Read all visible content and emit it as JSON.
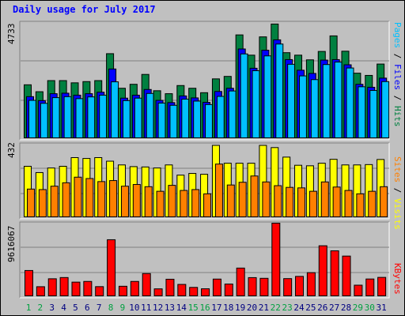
{
  "title": "Daily usage for July 2017",
  "panels": {
    "top": {
      "max_label": "4733",
      "legend": [
        {
          "text": "Pages",
          "color": "#00c0ff"
        },
        {
          "text": "Files",
          "color": "#0000ff"
        },
        {
          "text": "Hits",
          "color": "#008040"
        }
      ],
      "sep": " / "
    },
    "middle": {
      "max_label": "432",
      "legend": [
        {
          "text": "Sites",
          "color": "#ff8000"
        },
        {
          "text": "Visits",
          "color": "#ffff00"
        }
      ],
      "sep": " / "
    },
    "bottom": {
      "max_label": "9616067",
      "legend": [
        {
          "text": "KBytes",
          "color": "#ff0000"
        }
      ]
    }
  },
  "colors": {
    "background": "#c0c0c0",
    "hits": "#008040",
    "files": "#0000ff",
    "pages": "#00c0ff",
    "visits": "#ffff00",
    "sites": "#ff8000",
    "kbytes": "#ff0000",
    "weekday_label": "#000080",
    "weekend_label": "#00a040"
  },
  "chart_data": {
    "type": "bar",
    "title": "Daily usage for July 2017",
    "days": [
      "1",
      "2",
      "3",
      "4",
      "5",
      "6",
      "7",
      "8",
      "9",
      "10",
      "11",
      "12",
      "13",
      "14",
      "15",
      "16",
      "17",
      "18",
      "19",
      "20",
      "21",
      "22",
      "23",
      "24",
      "25",
      "26",
      "27",
      "28",
      "29",
      "30",
      "31"
    ],
    "weekend_days": [
      "1",
      "2",
      "8",
      "9",
      "15",
      "16",
      "22",
      "23",
      "29",
      "30"
    ],
    "series_top": {
      "ymax": 4733,
      "hits": [
        2180,
        1900,
        2350,
        2350,
        2260,
        2310,
        2350,
        3440,
        2040,
        2200,
        2600,
        1940,
        1820,
        2150,
        2040,
        1860,
        2420,
        2520,
        4200,
        3380,
        4120,
        4640,
        3480,
        3380,
        3190,
        3530,
        4160,
        3540,
        2650,
        2560,
        3020
      ],
      "files": [
        1700,
        1540,
        1820,
        1840,
        1760,
        1820,
        1880,
        2820,
        1640,
        1760,
        1990,
        1550,
        1460,
        1730,
        1650,
        1470,
        1910,
        2040,
        3630,
        2850,
        3580,
        4000,
        3200,
        2770,
        2640,
        3180,
        3200,
        2990,
        2200,
        2080,
        2450
      ],
      "pages": [
        1550,
        1430,
        1660,
        1700,
        1620,
        1690,
        1760,
        2300,
        1540,
        1640,
        1830,
        1440,
        1350,
        1600,
        1520,
        1380,
        1710,
        1930,
        3430,
        2750,
        3350,
        3830,
        3010,
        2540,
        2390,
        3000,
        3100,
        2860,
        2100,
        1950,
        2310
      ]
    },
    "series_middle": {
      "ymax": 432,
      "visits": [
        302,
        265,
        292,
        302,
        353,
        348,
        353,
        332,
        310,
        300,
        298,
        292,
        310,
        250,
        260,
        255,
        425,
        320,
        320,
        320,
        425,
        412,
        356,
        308,
        305,
        320,
        343,
        310,
        310,
        312,
        342
      ],
      "sites": [
        168,
        165,
        185,
        205,
        238,
        230,
        212,
        218,
        185,
        195,
        182,
        155,
        190,
        160,
        165,
        140,
        315,
        192,
        208,
        245,
        210,
        188,
        178,
        175,
        155,
        210,
        180,
        160,
        140,
        155,
        182
      ]
    },
    "series_bottom": {
      "ymax": 9616067,
      "kbytes": [
        3420000,
        1300000,
        2340000,
        2500000,
        1900000,
        1990000,
        1310000,
        7450000,
        1360000,
        1990000,
        3020000,
        1020000,
        2280000,
        1600000,
        1210000,
        1030000,
        2300000,
        1650000,
        3740000,
        2490000,
        2400000,
        9616067,
        2360000,
        2650000,
        3140000,
        6660000,
        6000000,
        5310000,
        1500000,
        2310000,
        2520000
      ]
    }
  }
}
